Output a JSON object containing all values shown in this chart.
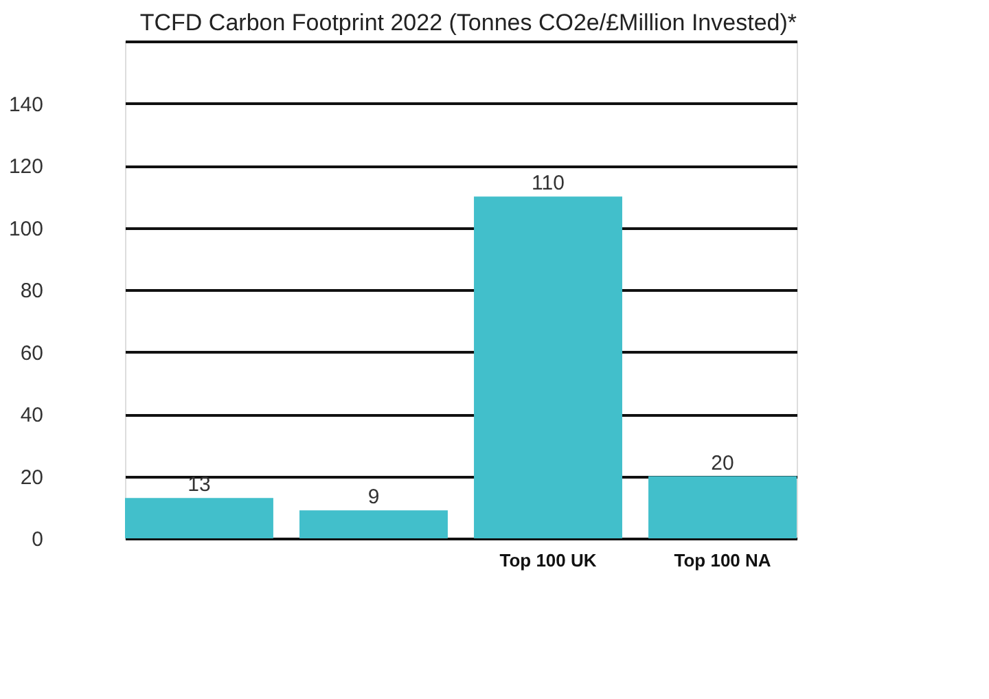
{
  "chart_data": {
    "type": "bar",
    "title": "TCFD Carbon Footprint 2022 (Tonnes CO2e/£Million Invested)*",
    "categories": [
      null,
      null,
      "Top 100 UK",
      "Top 100 NA"
    ],
    "values": [
      13,
      9,
      110,
      20
    ],
    "color": "#42bfcb",
    "data_labels": true,
    "ylim": [
      0,
      160
    ],
    "yticks": [
      0,
      20,
      40,
      60,
      80,
      100,
      120,
      140,
      {
        "value": 160,
        "label": null
      }
    ],
    "grid": "y"
  }
}
